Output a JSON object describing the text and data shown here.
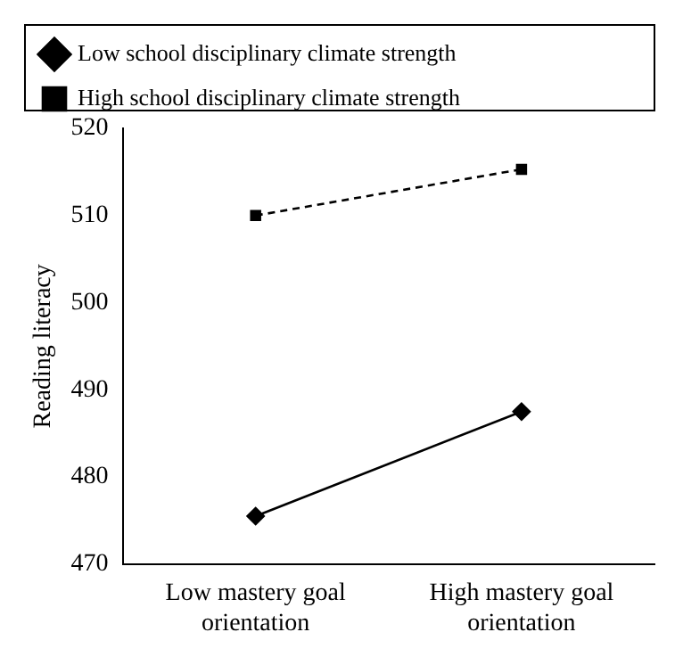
{
  "chart_data": {
    "type": "line",
    "ylabel": "Reading literacy",
    "categories": [
      "Low mastery goal orientation",
      "High mastery goal orientation"
    ],
    "series": [
      {
        "name": "Low school disciplinary climate strength",
        "color": "#000000",
        "values": [
          475.5,
          487.5
        ],
        "marker": "diamond",
        "line_style": "solid"
      },
      {
        "name": "High school disciplinary climate strength",
        "color": "#000000",
        "values": [
          510,
          515.3
        ],
        "marker": "square",
        "line_style": "dashed"
      }
    ],
    "ylim": [
      470,
      520
    ],
    "yticks": [
      470,
      480,
      490,
      500,
      510,
      520
    ],
    "grid": false,
    "legend": "top"
  }
}
